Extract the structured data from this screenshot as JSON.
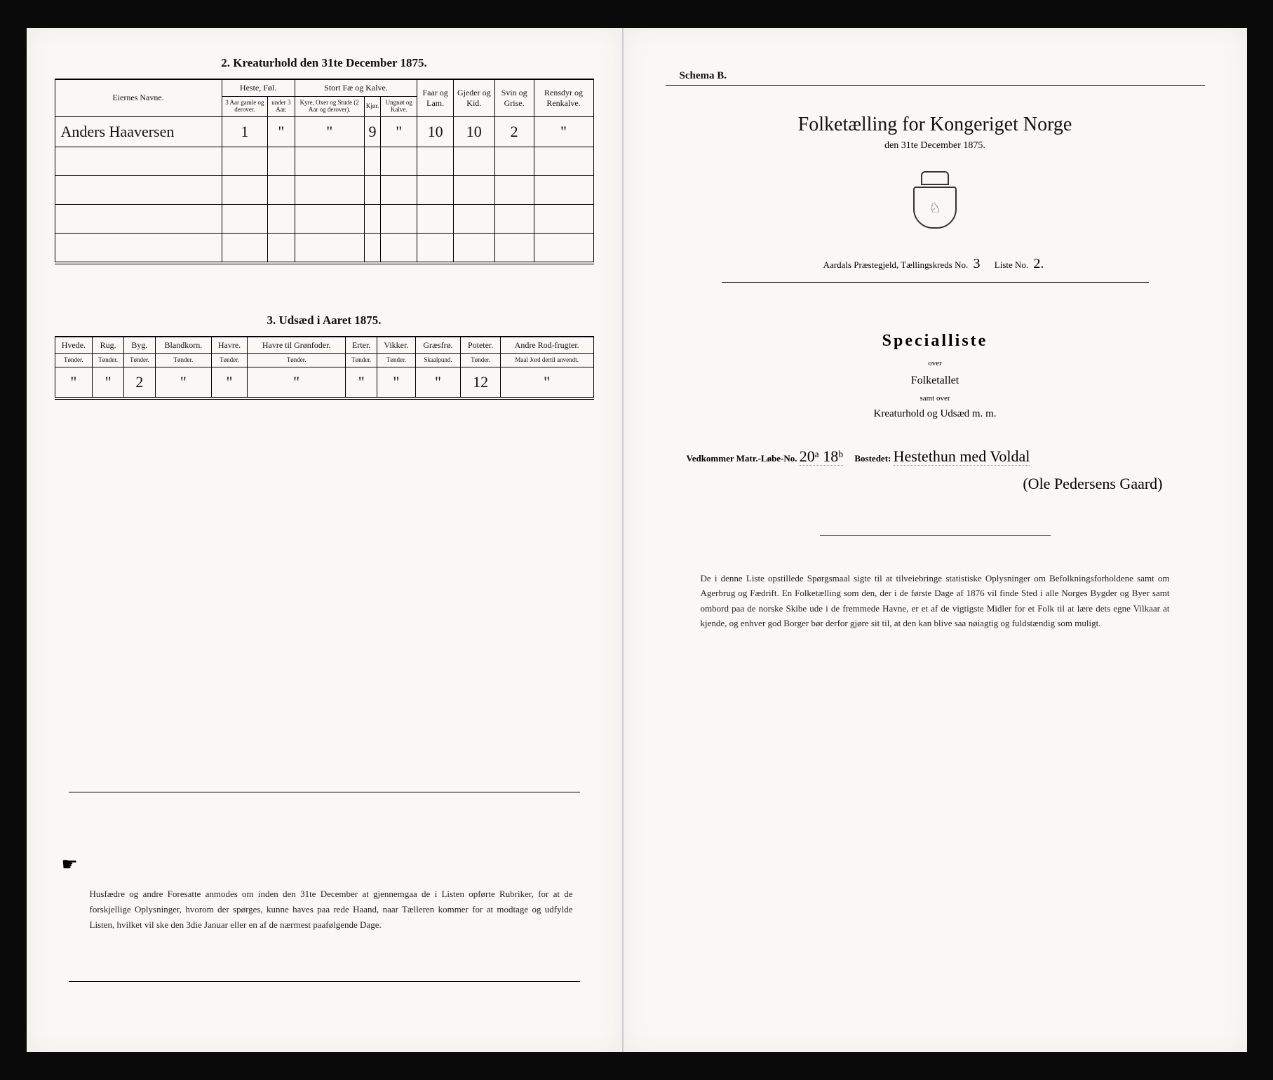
{
  "left": {
    "section2_title": "2.  Kreaturhold den 31te December 1875.",
    "t1": {
      "owner_header": "Eiernes Navne.",
      "groups": {
        "heste": "Heste, Føl.",
        "heste_sub1": "3 Aar gamle og derover.",
        "heste_sub2": "under 3 Aar.",
        "stort": "Stort Fæ og Kalve.",
        "stort_sub1": "Kyre, Oxer og Stude (2 Aar og derover).",
        "stort_sub2": "Kjør.",
        "stort_sub3": "Ungnøt og Kalve.",
        "faar": "Faar og Lam.",
        "gjed": "Gjeder og Kid.",
        "svin": "Svin og Grise.",
        "rens": "Rensdyr og Renkalve."
      },
      "row": {
        "owner": "Anders Haaversen",
        "heste1": "1",
        "heste2": "\"",
        "stort1": "\"",
        "stort2": "9",
        "stort3": "\"",
        "faar": "10",
        "gjed": "10",
        "svin": "2",
        "rens": "\""
      }
    },
    "section3_title": "3.  Udsæd i Aaret 1875.",
    "t2": {
      "cols": [
        {
          "h": "Hvede.",
          "s": "Tønder."
        },
        {
          "h": "Rug.",
          "s": "Tønder."
        },
        {
          "h": "Byg.",
          "s": "Tønder."
        },
        {
          "h": "Blandkorn.",
          "s": "Tønder."
        },
        {
          "h": "Havre.",
          "s": "Tønder."
        },
        {
          "h": "Havre til Grønfoder.",
          "s": "Tønder."
        },
        {
          "h": "Erter.",
          "s": "Tønder."
        },
        {
          "h": "Vikker.",
          "s": "Tønder."
        },
        {
          "h": "Græsfrø.",
          "s": "Skaalpund."
        },
        {
          "h": "Poteter.",
          "s": "Tønder."
        },
        {
          "h": "Andre Rod-frugter.",
          "s": "Maal Jord dertil anvendt."
        }
      ],
      "vals": [
        "\"",
        "\"",
        "2",
        "\"",
        "\"",
        "\"",
        "\"",
        "\"",
        "\"",
        "12",
        "\""
      ]
    },
    "footnote": "Husfædre og andre Foresatte anmodes om inden den 31te December at gjennemgaa de i Listen opførte Rubriker, for at de forskjellige Oplysninger, hvorom der spørges, kunne haves paa rede Haand, naar Tælleren kommer for at modtage og udfylde Listen, hvilket vil ske den 3die Januar eller en af de nærmest paafølgende Dage."
  },
  "right": {
    "schema": "Schema B.",
    "title": "Folketælling for Kongeriget Norge",
    "subtitle": "den 31te December 1875.",
    "line": {
      "prefix": "Aardals Præstegjeld, Tællingskreds No.",
      "kreds": "3",
      "liste_lbl": "Liste No.",
      "liste": "2."
    },
    "special": "Specialliste",
    "over1": "over",
    "folketallet": "Folketallet",
    "over2": "samt over",
    "kreatur": "Kreaturhold og Udsæd m. m.",
    "vedkom_lbl": "Vedkommer Matr.-Løbe-No.",
    "matr": "20ᵃ 18ᵇ",
    "bost_lbl": "Bostedet:",
    "bost": "Hestethun med Voldal",
    "bost2": "(Ole Pedersens Gaard)",
    "footer": "De i denne Liste opstillede Spørgsmaal sigte til at tilveiebringe statistiske Oplysninger om Befolkningsforholdene samt om Agerbrug og Fædrift.  En Folketælling som den, der i de første Dage af 1876 vil finde Sted i alle Norges Bygder og Byer samt ombord paa de norske Skibe ude i de fremmede Havne, er et af de vigtigste Midler for et Folk til at lære dets egne Vilkaar at kjende, og enhver god Borger bør derfor gjøre sit til, at den kan blive saa nøiagtig og fuldstændig som muligt."
  }
}
